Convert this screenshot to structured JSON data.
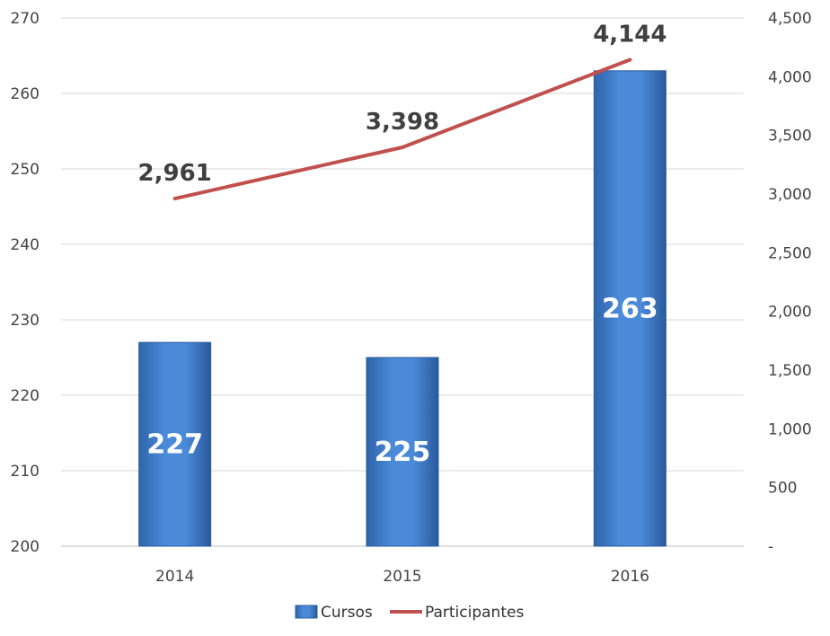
{
  "chart_data": {
    "type": "bar",
    "categories": [
      "2014",
      "2015",
      "2016"
    ],
    "series": [
      {
        "name": "Cursos",
        "kind": "bar",
        "axis": "left",
        "values": [
          227,
          225,
          263
        ],
        "labels": [
          "227",
          "225",
          "263"
        ],
        "color": "#3b78c8"
      },
      {
        "name": "Participantes",
        "kind": "line",
        "axis": "right",
        "values": [
          2961,
          3398,
          4144
        ],
        "labels": [
          "2,961",
          "3,398",
          "4,144"
        ],
        "color": "#c0504d"
      }
    ],
    "left_axis": {
      "ylim": [
        200,
        270
      ],
      "ticks": [
        200,
        210,
        220,
        230,
        240,
        250,
        260,
        270
      ],
      "tick_labels": [
        "200",
        "210",
        "220",
        "230",
        "240",
        "250",
        "260",
        "270"
      ]
    },
    "right_axis": {
      "ylim": [
        0,
        4500
      ],
      "ticks": [
        0,
        500,
        1000,
        1500,
        2000,
        2500,
        3000,
        3500,
        4000,
        4500
      ],
      "tick_labels": [
        "-",
        "500",
        "1,000",
        "1,500",
        "2,000",
        "2,500",
        "3,000",
        "3,500",
        "4,000",
        "4,500"
      ]
    },
    "title": "",
    "xlabel": "",
    "ylabel": "",
    "grid": true,
    "legend": {
      "position": "bottom",
      "entries": [
        "Cursos",
        "Participantes"
      ]
    }
  }
}
